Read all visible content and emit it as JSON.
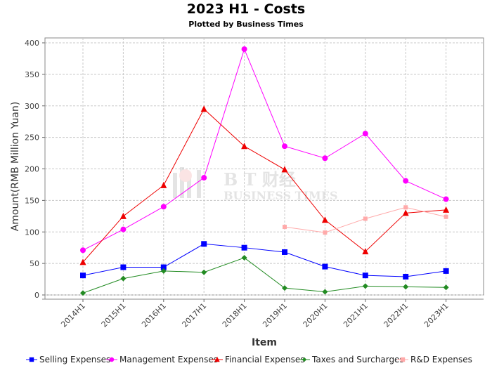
{
  "chart_data": {
    "type": "line",
    "title": "2023 H1 - Costs",
    "subtitle": "Plotted by Business Times",
    "xlabel": "Item",
    "ylabel": "Amount(RMB Million Yuan)",
    "categories": [
      "2014H1",
      "2015H1",
      "2016H1",
      "2017H1",
      "2018H1",
      "2019H1",
      "2020H1",
      "2021H1",
      "2022H1",
      "2023H1"
    ],
    "ylim": [
      0,
      400
    ],
    "yticks": [
      0,
      50,
      100,
      150,
      200,
      250,
      300,
      350,
      400
    ],
    "grid": true,
    "legend_position": "bottom",
    "series": [
      {
        "name": "Selling Expenses",
        "color": "#0000ff",
        "marker": "square",
        "values": [
          31,
          44,
          44,
          81,
          75,
          68,
          45,
          31,
          29,
          38
        ]
      },
      {
        "name": "Management Expenses",
        "color": "#ff00ff",
        "marker": "circle",
        "values": [
          71,
          104,
          140,
          186,
          390,
          236,
          217,
          256,
          181,
          152
        ]
      },
      {
        "name": "Financial Expenses",
        "color": "#ee0000",
        "marker": "triangle",
        "values": [
          52,
          125,
          174,
          295,
          236,
          199,
          119,
          69,
          130,
          135
        ]
      },
      {
        "name": "Taxes and Surcharges",
        "color": "#228b22",
        "marker": "diamond",
        "values": [
          3,
          26,
          38,
          36,
          59,
          11,
          5,
          14,
          13,
          12
        ]
      },
      {
        "name": "R&D Expenses",
        "color": "#ffaaaa",
        "marker": "square",
        "values": [
          null,
          null,
          null,
          null,
          null,
          108,
          99,
          121,
          139,
          124
        ]
      }
    ]
  },
  "watermark": {
    "text_cn": "B T 财经",
    "text_en": "BUSINESS TIMES"
  }
}
